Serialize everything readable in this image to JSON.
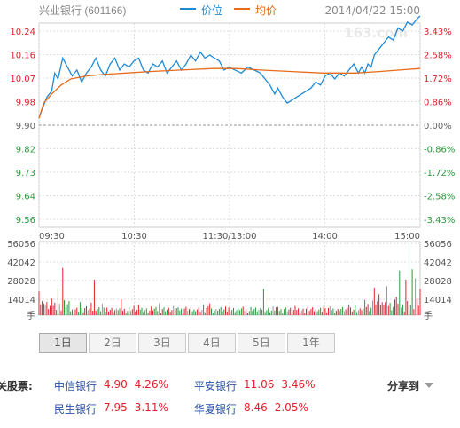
{
  "chart_data": {
    "type": "line",
    "title": "兴业银行 (601166)",
    "datetime": "2014/04/22 15:00",
    "watermark": "163.com",
    "legend": [
      "价位",
      "均价"
    ],
    "prev_close": 9.9,
    "price_ticks": [
      "10.24",
      "10.16",
      "10.07",
      "9.98",
      "9.90",
      "9.82",
      "9.73",
      "9.64",
      "9.56"
    ],
    "pct_ticks": [
      "3.43%",
      "2.58%",
      "1.72%",
      "0.86%",
      "0.00%",
      "-0.86%",
      "-1.72%",
      "-2.58%",
      "-3.43%"
    ],
    "time_ticks": [
      "09:30",
      "10:30",
      "11:30/13:00",
      "14:00",
      "15:00"
    ],
    "ylim": [
      9.56,
      10.24
    ],
    "volume_ticks": [
      "56056",
      "42042",
      "28028",
      "14014"
    ],
    "volume_unit": "手",
    "volume_max": 56056,
    "grid": true,
    "minute_index_range": [
      0,
      241
    ],
    "series": [
      {
        "name": "价位",
        "color": "#1e8ad6",
        "points": [
          [
            0,
            9.9
          ],
          [
            2,
            9.93
          ],
          [
            5,
            9.97
          ],
          [
            8,
            9.99
          ],
          [
            10,
            10.05
          ],
          [
            12,
            10.03
          ],
          [
            15,
            10.1
          ],
          [
            18,
            10.07
          ],
          [
            21,
            10.04
          ],
          [
            24,
            10.06
          ],
          [
            27,
            10.02
          ],
          [
            30,
            10.05
          ],
          [
            33,
            10.07
          ],
          [
            36,
            10.1
          ],
          [
            39,
            10.06
          ],
          [
            42,
            10.04
          ],
          [
            45,
            10.08
          ],
          [
            48,
            10.1
          ],
          [
            51,
            10.06
          ],
          [
            54,
            10.08
          ],
          [
            57,
            10.07
          ],
          [
            60,
            10.09
          ],
          [
            63,
            10.1
          ],
          [
            66,
            10.06
          ],
          [
            69,
            10.05
          ],
          [
            72,
            10.08
          ],
          [
            75,
            10.07
          ],
          [
            78,
            10.09
          ],
          [
            81,
            10.05
          ],
          [
            84,
            10.07
          ],
          [
            87,
            10.09
          ],
          [
            90,
            10.06
          ],
          [
            93,
            10.08
          ],
          [
            96,
            10.11
          ],
          [
            99,
            10.09
          ],
          [
            102,
            10.12
          ],
          [
            105,
            10.1
          ],
          [
            108,
            10.11
          ],
          [
            111,
            10.1
          ],
          [
            114,
            10.09
          ],
          [
            117,
            10.06
          ],
          [
            120,
            10.07
          ],
          [
            124,
            10.06
          ],
          [
            128,
            10.05
          ],
          [
            132,
            10.07
          ],
          [
            136,
            10.06
          ],
          [
            140,
            10.05
          ],
          [
            143,
            10.03
          ],
          [
            146,
            10.01
          ],
          [
            149,
            9.98
          ],
          [
            151,
            10.0
          ],
          [
            154,
            9.97
          ],
          [
            157,
            9.95
          ],
          [
            160,
            9.96
          ],
          [
            163,
            9.97
          ],
          [
            166,
            9.98
          ],
          [
            169,
            9.99
          ],
          [
            172,
            10.0
          ],
          [
            175,
            10.02
          ],
          [
            178,
            10.01
          ],
          [
            181,
            10.04
          ],
          [
            184,
            10.05
          ],
          [
            187,
            10.03
          ],
          [
            190,
            10.05
          ],
          [
            193,
            10.04
          ],
          [
            196,
            10.06
          ],
          [
            199,
            10.08
          ],
          [
            202,
            10.05
          ],
          [
            204,
            10.07
          ],
          [
            206,
            10.05
          ],
          [
            208,
            10.08
          ],
          [
            210,
            10.07
          ],
          [
            212,
            10.11
          ],
          [
            215,
            10.13
          ],
          [
            218,
            10.15
          ],
          [
            221,
            10.17
          ],
          [
            224,
            10.16
          ],
          [
            227,
            10.2
          ],
          [
            230,
            10.19
          ],
          [
            233,
            10.22
          ],
          [
            236,
            10.21
          ],
          [
            239,
            10.23
          ],
          [
            241,
            10.24
          ]
        ]
      },
      {
        "name": "均价",
        "color": "#e86a1a",
        "points": [
          [
            0,
            9.9
          ],
          [
            3,
            9.95
          ],
          [
            8,
            9.98
          ],
          [
            14,
            10.01
          ],
          [
            20,
            10.03
          ],
          [
            30,
            10.04
          ],
          [
            40,
            10.045
          ],
          [
            55,
            10.05
          ],
          [
            70,
            10.055
          ],
          [
            90,
            10.06
          ],
          [
            110,
            10.065
          ],
          [
            125,
            10.065
          ],
          [
            140,
            10.06
          ],
          [
            160,
            10.055
          ],
          [
            180,
            10.05
          ],
          [
            200,
            10.05
          ],
          [
            215,
            10.055
          ],
          [
            228,
            10.06
          ],
          [
            241,
            10.065
          ]
        ]
      }
    ],
    "volume_spikes": [
      [
        0,
        18000
      ],
      [
        3,
        9000
      ],
      [
        12,
        21000
      ],
      [
        15,
        36000
      ],
      [
        26,
        10000
      ],
      [
        33,
        9500
      ],
      [
        35,
        27000
      ],
      [
        40,
        9000
      ],
      [
        52,
        12000
      ],
      [
        60,
        7000
      ],
      [
        63,
        8000
      ],
      [
        76,
        9000
      ],
      [
        88,
        6000
      ],
      [
        104,
        8000
      ],
      [
        108,
        9000
      ],
      [
        118,
        6500
      ],
      [
        142,
        20000
      ],
      [
        150,
        6000
      ],
      [
        180,
        6500
      ],
      [
        196,
        8000
      ],
      [
        200,
        7500
      ],
      [
        212,
        21000
      ],
      [
        215,
        16000
      ],
      [
        220,
        22000
      ],
      [
        226,
        14000
      ],
      [
        228,
        34000
      ],
      [
        232,
        27000
      ],
      [
        234,
        56056
      ],
      [
        236,
        35000
      ],
      [
        238,
        28000
      ],
      [
        241,
        20000
      ]
    ]
  },
  "tabs": [
    "1日",
    "2日",
    "3日",
    "4日",
    "5日",
    "1年"
  ],
  "related": {
    "label": "关股票:",
    "share_label": "分享到",
    "stocks": [
      {
        "name": "中信银行",
        "price": "4.90",
        "pct": "4.26%"
      },
      {
        "name": "平安银行",
        "price": "11.06",
        "pct": "3.46%"
      },
      {
        "name": "民生银行",
        "price": "7.95",
        "pct": "3.11%"
      },
      {
        "name": "华夏银行",
        "price": "8.46",
        "pct": "2.05%"
      }
    ]
  },
  "colors": {
    "up": "#e0202a",
    "down": "#2a9a3a",
    "neutral": "#999999",
    "grid": "#dddddd"
  }
}
